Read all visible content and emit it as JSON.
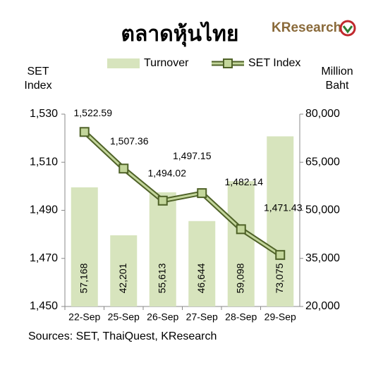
{
  "brand": "KResearch",
  "chart_data": {
    "type": "bar_line",
    "title": "ตลาดหุ้นไทย",
    "y_label": "SET Index",
    "y2_label": "Million Baht",
    "source": "Sources: SET, ThaiQuest, KResearch",
    "categories": [
      "22-Sep",
      "25-Sep",
      "26-Sep",
      "27-Sep",
      "28-Sep",
      "29-Sep"
    ],
    "series": [
      {
        "name": "Turnover",
        "type": "bar",
        "axis": "y2",
        "color": "#d7e4bd",
        "values": [
          57168,
          42201,
          55613,
          46644,
          59098,
          73075
        ],
        "value_labels": [
          "57,168",
          "42,201",
          "55,613",
          "46,644",
          "59,098",
          "73,075"
        ]
      },
      {
        "name": "SET Index",
        "type": "line",
        "color": "#4f6228",
        "fill": "#c3d69b",
        "values": [
          1522.59,
          1507.36,
          1494.02,
          1497.15,
          1482.14,
          1471.43
        ],
        "value_labels": [
          "1,522.59",
          "1,507.36",
          "1,494.02",
          "1,497.15",
          "1,482.14",
          "1,471.43"
        ]
      }
    ],
    "ylim": [
      1450,
      1530
    ],
    "yticks": [
      {
        "value": 1450,
        "label": "1,450"
      },
      {
        "value": 1470,
        "label": "1,470"
      },
      {
        "value": 1490,
        "label": "1,490"
      },
      {
        "value": 1510,
        "label": "1,510"
      },
      {
        "value": 1530,
        "label": "1,530"
      }
    ],
    "y2lim": [
      20000,
      80000
    ],
    "y2ticks": [
      {
        "value": 20000,
        "label": "20,000"
      },
      {
        "value": 35000,
        "label": "35,000"
      },
      {
        "value": 50000,
        "label": "50,000"
      },
      {
        "value": 65000,
        "label": "65,000"
      },
      {
        "value": 80000,
        "label": "80,000"
      }
    ],
    "legend": "top"
  }
}
